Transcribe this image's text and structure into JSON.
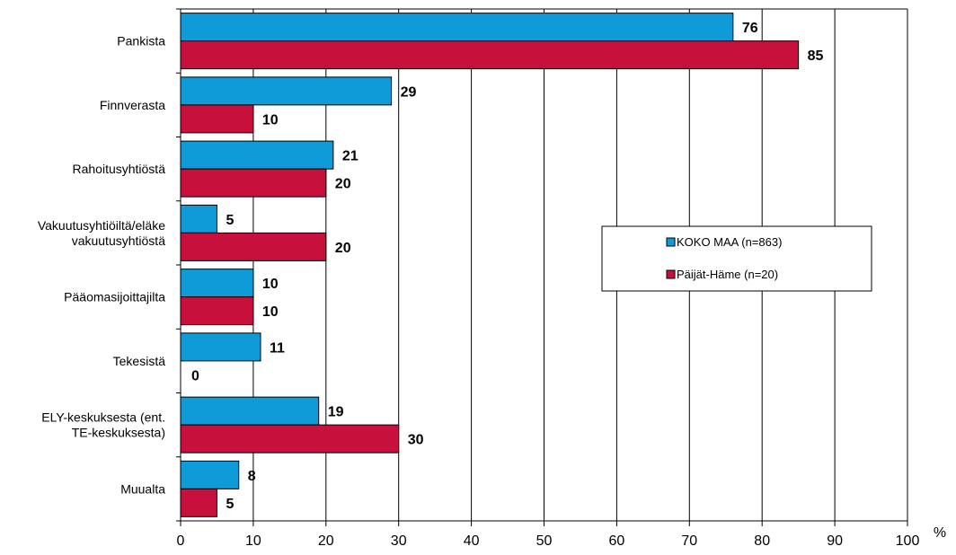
{
  "chart_data": {
    "type": "bar",
    "orientation": "horizontal",
    "categories": [
      [
        "Pankista"
      ],
      [
        "Finnverasta"
      ],
      [
        "Rahoitusyhtiöstä"
      ],
      [
        "Vakuutusyhtiöiltä/eläke",
        "vakuutusyhtiöstä"
      ],
      [
        "Pääomasijoittajilta"
      ],
      [
        "Tekesistä"
      ],
      [
        "ELY-keskuksesta (ent.",
        "TE-keskuksesta)"
      ],
      [
        "Muualta"
      ]
    ],
    "series": [
      {
        "name": "KOKO MAA (n=863)",
        "color": "#0f9ad8",
        "values": [
          76,
          29,
          21,
          5,
          10,
          11,
          19,
          8
        ]
      },
      {
        "name": "Päijät-Häme (n=20)",
        "color": "#c8103c",
        "values": [
          85,
          10,
          20,
          20,
          10,
          0,
          30,
          5
        ]
      }
    ],
    "xlim": [
      0,
      100
    ],
    "xticks": [
      0,
      10,
      20,
      30,
      40,
      50,
      60,
      70,
      80,
      90,
      100
    ],
    "xunit": "%",
    "grid": true,
    "legend": "right"
  }
}
